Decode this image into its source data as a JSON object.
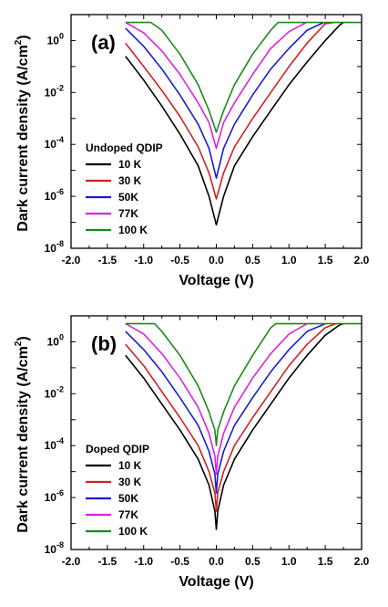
{
  "colors": {
    "10 K": "#000000",
    "30 K": "#d42020",
    "50K": "#1a1ad6",
    "77K": "#e020e0",
    "100 K": "#1c8a1c"
  },
  "chart_data": [
    {
      "type": "line",
      "panel_label": "(a)",
      "xlabel": "Voltage (V)",
      "ylabel_main": "Dark current density (A/cm",
      "ylabel_sup": "2",
      "ylabel_close": ")",
      "xlim": [
        -2.0,
        2.0
      ],
      "ylim": [
        1e-08,
        10
      ],
      "yscale": "log",
      "x_ticks": [
        "-2.0",
        "-1.5",
        "-1.0",
        "-0.5",
        "0.0",
        "0.5",
        "1.0",
        "1.5",
        "2.0"
      ],
      "y_ticks": [
        {
          "base": "10",
          "exp": "0"
        },
        {
          "base": "10",
          "exp": "-2"
        },
        {
          "base": "10",
          "exp": "-4"
        },
        {
          "base": "10",
          "exp": "-6"
        },
        {
          "base": "10",
          "exp": "-8"
        }
      ],
      "legend_title": "Undoped QDIP",
      "legend_position": "lower-left",
      "series": [
        {
          "name": "10 K",
          "x": [
            -1.25,
            -1.0,
            -0.75,
            -0.5,
            -0.25,
            -0.1,
            0.0,
            0.1,
            0.25,
            0.5,
            0.75,
            1.0,
            1.25,
            1.5,
            1.7,
            1.75
          ],
          "y": [
            0.25,
            0.03,
            0.003,
            0.00025,
            1.5e-05,
            1e-06,
            8e-08,
            1e-06,
            1.5e-05,
            0.0002,
            0.002,
            0.02,
            0.15,
            1.0,
            4.0,
            5.0
          ]
        },
        {
          "name": "30 K",
          "x": [
            -1.25,
            -1.0,
            -0.75,
            -0.5,
            -0.25,
            -0.1,
            0.0,
            0.1,
            0.25,
            0.5,
            0.75,
            1.0,
            1.25,
            1.5,
            1.62
          ],
          "y": [
            0.8,
            0.1,
            0.012,
            0.0012,
            8e-05,
            8e-06,
            8e-07,
            8e-06,
            8e-05,
            0.001,
            0.01,
            0.1,
            0.8,
            4.5,
            5.0
          ]
        },
        {
          "name": "50K",
          "x": [
            -1.25,
            -1.0,
            -0.75,
            -0.5,
            -0.25,
            -0.1,
            0.0,
            0.1,
            0.25,
            0.5,
            0.75,
            1.0,
            1.25,
            1.48
          ],
          "y": [
            3.0,
            0.6,
            0.08,
            0.008,
            0.0006,
            7e-05,
            5e-06,
            7e-05,
            0.0006,
            0.008,
            0.08,
            0.5,
            2.5,
            5.0
          ]
        },
        {
          "name": "77K",
          "x": [
            -1.25,
            -1.0,
            -0.75,
            -0.5,
            -0.25,
            -0.1,
            0.0,
            0.1,
            0.25,
            0.5,
            0.75,
            1.0,
            1.24
          ],
          "y": [
            5.0,
            2.0,
            0.4,
            0.05,
            0.004,
            0.0007,
            7e-05,
            0.0007,
            0.004,
            0.05,
            0.5,
            2.2,
            5.0
          ]
        },
        {
          "name": "100 K",
          "x": [
            -1.25,
            -0.9,
            -0.75,
            -0.5,
            -0.25,
            -0.1,
            0.0,
            0.1,
            0.25,
            0.5,
            0.75,
            0.85,
            2.0
          ],
          "y": [
            5.0,
            5.0,
            2.5,
            0.3,
            0.02,
            0.002,
            0.0003,
            0.002,
            0.02,
            0.3,
            2.5,
            5.0,
            5.0
          ]
        }
      ]
    },
    {
      "type": "line",
      "panel_label": "(b)",
      "xlabel": "Voltage (V)",
      "ylabel_main": "Dark current density (A/cm",
      "ylabel_sup": "2",
      "ylabel_close": ")",
      "xlim": [
        -2.0,
        2.0
      ],
      "ylim": [
        1e-08,
        10
      ],
      "yscale": "log",
      "x_ticks": [
        "-2.0",
        "-1.5",
        "-1.0",
        "-0.5",
        "0.0",
        "0.5",
        "1.0",
        "1.5",
        "2.0"
      ],
      "y_ticks": [
        {
          "base": "10",
          "exp": "0"
        },
        {
          "base": "10",
          "exp": "-2"
        },
        {
          "base": "10",
          "exp": "-4"
        },
        {
          "base": "10",
          "exp": "-6"
        },
        {
          "base": "10",
          "exp": "-8"
        }
      ],
      "legend_title": "Doped QDIP",
      "legend_position": "lower-left",
      "series": [
        {
          "name": "10 K",
          "x": [
            -1.25,
            -1.0,
            -0.75,
            -0.5,
            -0.25,
            -0.1,
            -0.02,
            0.0,
            0.02,
            0.1,
            0.25,
            0.5,
            0.75,
            1.0,
            1.25,
            1.5,
            1.7,
            1.75
          ],
          "y": [
            0.3,
            0.04,
            0.004,
            0.0004,
            3e-05,
            3e-06,
            3e-07,
            6e-08,
            3e-07,
            3e-06,
            3e-05,
            0.0004,
            0.004,
            0.04,
            0.3,
            1.8,
            4.5,
            5.0
          ]
        },
        {
          "name": "30 K",
          "x": [
            -1.25,
            -1.0,
            -0.75,
            -0.5,
            -0.25,
            -0.1,
            -0.02,
            0.0,
            0.02,
            0.1,
            0.25,
            0.5,
            0.75,
            1.0,
            1.25,
            1.5,
            1.65
          ],
          "y": [
            0.8,
            0.12,
            0.012,
            0.0012,
            0.0001,
            1e-05,
            1.5e-06,
            3e-07,
            1.5e-06,
            1e-05,
            0.0001,
            0.0012,
            0.012,
            0.12,
            0.8,
            3.5,
            5.0
          ]
        },
        {
          "name": "50K",
          "x": [
            -1.25,
            -1.0,
            -0.75,
            -0.5,
            -0.25,
            -0.1,
            -0.02,
            0.0,
            0.02,
            0.1,
            0.25,
            0.5,
            0.75,
            1.0,
            1.25,
            1.5
          ],
          "y": [
            2.5,
            0.5,
            0.07,
            0.007,
            0.0006,
            6e-05,
            8e-06,
            1.5e-06,
            8e-06,
            6e-05,
            0.0006,
            0.007,
            0.07,
            0.5,
            2.5,
            5.0
          ]
        },
        {
          "name": "77K",
          "x": [
            -1.25,
            -1.0,
            -0.75,
            -0.5,
            -0.25,
            -0.1,
            -0.02,
            0.0,
            0.02,
            0.1,
            0.25,
            0.5,
            0.75,
            1.0,
            1.25
          ],
          "y": [
            5.0,
            2.0,
            0.35,
            0.04,
            0.003,
            0.0003,
            4e-05,
            8e-06,
            4e-05,
            0.0003,
            0.003,
            0.04,
            0.35,
            2.0,
            5.0
          ]
        },
        {
          "name": "100 K",
          "x": [
            -1.25,
            -0.85,
            -0.75,
            -0.5,
            -0.25,
            -0.1,
            -0.02,
            0.0,
            0.02,
            0.1,
            0.25,
            0.5,
            0.75,
            0.82,
            2.0
          ],
          "y": [
            5.0,
            5.0,
            2.5,
            0.3,
            0.02,
            0.002,
            0.0004,
            0.0001,
            0.0004,
            0.002,
            0.02,
            0.3,
            3.5,
            5.0,
            5.0
          ]
        }
      ]
    }
  ]
}
